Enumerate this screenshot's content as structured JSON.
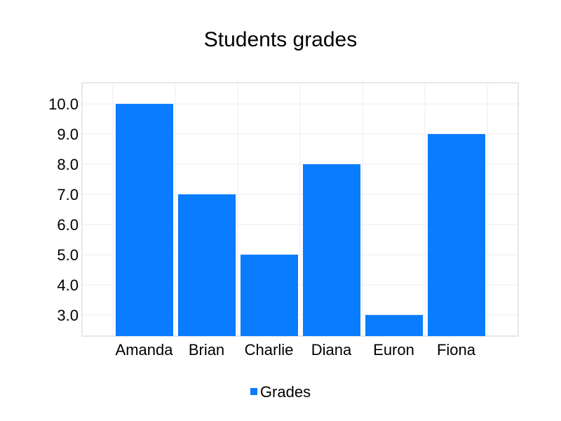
{
  "chart_data": {
    "type": "bar",
    "title": "Students grades",
    "xlabel": "",
    "ylabel": "",
    "categories": [
      "Amanda",
      "Brian",
      "Charlie",
      "Diana",
      "Euron",
      "Fiona"
    ],
    "series": [
      {
        "name": "Grades",
        "values": [
          10.0,
          7.0,
          5.0,
          8.0,
          3.0,
          9.0
        ],
        "color": "#0a7cff"
      }
    ],
    "ylim": [
      2.3,
      10.7
    ],
    "yticks": [
      "3.0",
      "4.0",
      "5.0",
      "6.0",
      "7.0",
      "8.0",
      "9.0",
      "10.0"
    ],
    "grid": true,
    "legend_position": "bottom-center"
  }
}
